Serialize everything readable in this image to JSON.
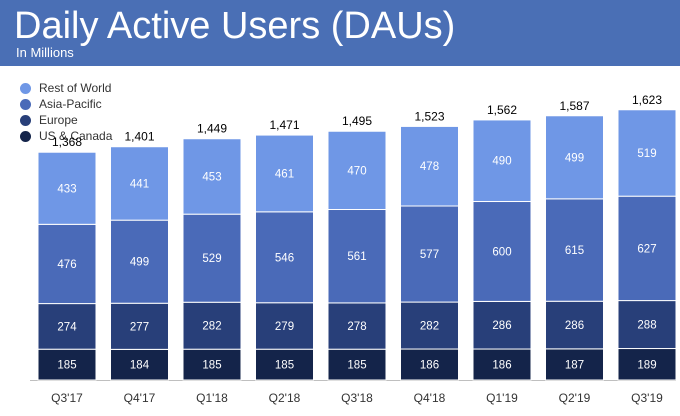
{
  "header": {
    "title": "Daily Active Users (DAUs)",
    "subtitle": "In Millions"
  },
  "colors": {
    "banner": "#4a6fb5",
    "rest_of_world": "#6f97e6",
    "asia_pacific": "#4a6ab8",
    "europe": "#283f79",
    "us_canada": "#14244a"
  },
  "legend": [
    {
      "label": "Rest of World",
      "color": "#6f97e6"
    },
    {
      "label": "Asia-Pacific",
      "color": "#4a6ab8"
    },
    {
      "label": "Europe",
      "color": "#283f79"
    },
    {
      "label": "US & Canada",
      "color": "#14244a"
    }
  ],
  "chart_data": {
    "type": "bar",
    "stacked": true,
    "title": "Daily Active Users (DAUs)",
    "subtitle": "In Millions",
    "categories": [
      "Q3'17",
      "Q4'17",
      "Q1'18",
      "Q2'18",
      "Q3'18",
      "Q4'18",
      "Q1'19",
      "Q2'19",
      "Q3'19"
    ],
    "series": [
      {
        "name": "US & Canada",
        "color": "#14244a",
        "values": [
          185,
          184,
          185,
          185,
          185,
          186,
          186,
          187,
          189
        ]
      },
      {
        "name": "Europe",
        "color": "#283f79",
        "values": [
          274,
          277,
          282,
          279,
          278,
          282,
          286,
          286,
          288
        ]
      },
      {
        "name": "Asia-Pacific",
        "color": "#4a6ab8",
        "values": [
          476,
          499,
          529,
          546,
          561,
          577,
          600,
          615,
          627
        ]
      },
      {
        "name": "Rest of World",
        "color": "#6f97e6",
        "values": [
          433,
          441,
          453,
          461,
          470,
          478,
          490,
          499,
          519
        ]
      }
    ],
    "totals": [
      "1,368",
      "1,401",
      "1,449",
      "1,471",
      "1,495",
      "1,523",
      "1,562",
      "1,587",
      "1,623"
    ],
    "legend_position": "top-left",
    "grid": false
  }
}
